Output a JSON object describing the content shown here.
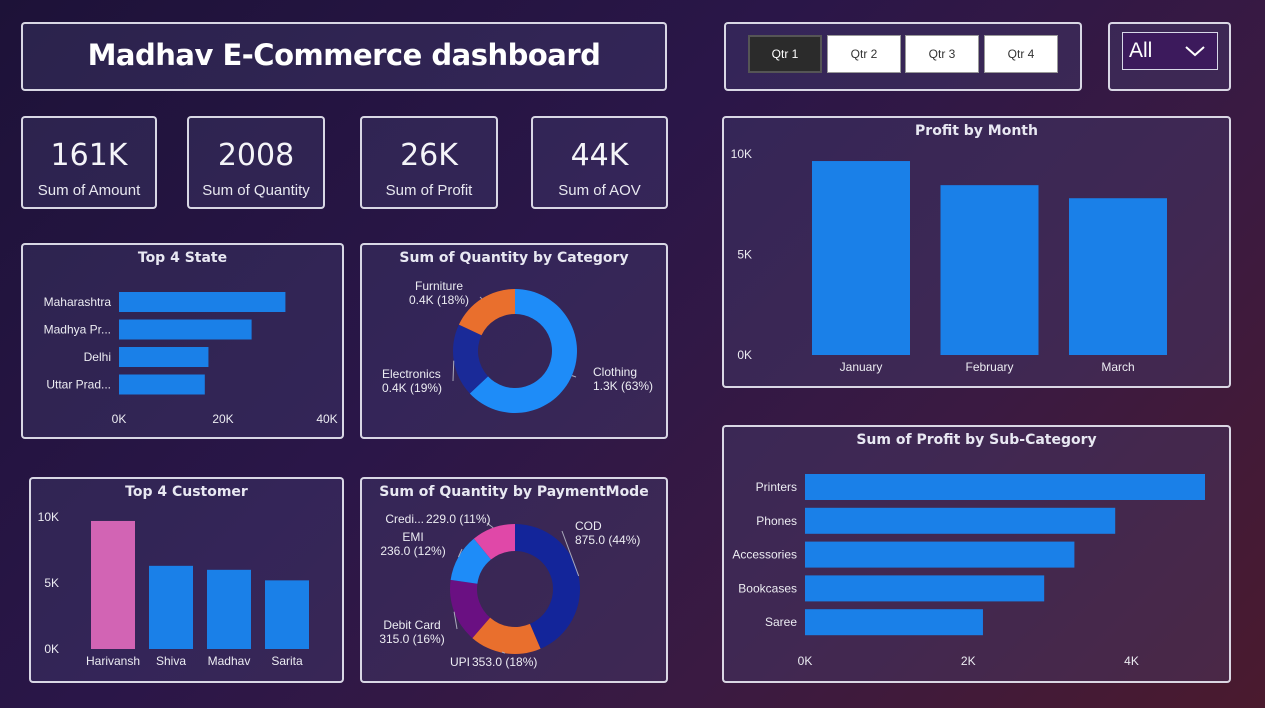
{
  "header": {
    "title": "Madhav E-Commerce dashboard"
  },
  "slicer": {
    "quarters": [
      {
        "label": "Qtr 1",
        "selected": true
      },
      {
        "label": "Qtr 2",
        "selected": false
      },
      {
        "label": "Qtr 3",
        "selected": false
      },
      {
        "label": "Qtr 4",
        "selected": false
      }
    ],
    "dropdown_value": "All"
  },
  "kpis": [
    {
      "value": "161K",
      "label": "Sum of Amount"
    },
    {
      "value": "2008",
      "label": "Sum of Quantity"
    },
    {
      "value": "26K",
      "label": "Sum of Profit"
    },
    {
      "value": "44K",
      "label": "Sum of AOV"
    }
  ],
  "colors": {
    "bar": "#1a80e8",
    "highlight": "#d264b4",
    "clothing": "#1e8cf8",
    "electronics": "#1a2a98",
    "furniture": "#e96f2d",
    "cod": "#13259a",
    "upi": "#e96f2d",
    "debit_card": "#6a1082",
    "emi": "#1e8cf8",
    "credit": "#e048a8"
  },
  "chart_data": [
    {
      "id": "top_state",
      "type": "bar",
      "orientation": "horizontal",
      "title": "Top 4 State",
      "categories": [
        "Maharashtra",
        "Madhya Pr...",
        "Delhi",
        "Uttar Prad..."
      ],
      "values": [
        32000,
        25500,
        17200,
        16500
      ],
      "xlim": [
        0,
        40000
      ],
      "xticks": [
        "0K",
        "20K",
        "40K"
      ],
      "xtick_values": [
        0,
        20000,
        40000
      ]
    },
    {
      "id": "qty_by_category",
      "type": "pie",
      "donut": true,
      "title": "Sum of Quantity by Category",
      "slices": [
        {
          "name": "Clothing",
          "value_label": "1.3K (63%)",
          "percent": 63,
          "color_key": "clothing"
        },
        {
          "name": "Electronics",
          "value_label": "0.4K (19%)",
          "percent": 19,
          "color_key": "electronics"
        },
        {
          "name": "Furniture",
          "value_label": "0.4K (18%)",
          "percent": 18,
          "color_key": "furniture"
        }
      ]
    },
    {
      "id": "top_customer",
      "type": "bar",
      "orientation": "vertical",
      "title": "Top 4 Customer",
      "categories": [
        "Harivansh",
        "Shiva",
        "Madhav",
        "Sarita"
      ],
      "values": [
        9700,
        6300,
        6000,
        5200
      ],
      "highlight_index": 0,
      "ylim": [
        0,
        10000
      ],
      "yticks": [
        "0K",
        "5K",
        "10K"
      ],
      "ytick_values": [
        0,
        5000,
        10000
      ]
    },
    {
      "id": "qty_by_payment",
      "type": "pie",
      "donut": true,
      "title": "Sum of Quantity by PaymentMode",
      "slices": [
        {
          "name": "COD",
          "value_label": "875.0 (44%)",
          "value": 875,
          "percent": 44,
          "color_key": "cod"
        },
        {
          "name": "UPI",
          "value_label": "353.0 (18%)",
          "value": 353,
          "percent": 18,
          "color_key": "upi"
        },
        {
          "name": "Debit Card",
          "value_label": "315.0 (16%)",
          "value": 315,
          "percent": 16,
          "color_key": "debit_card"
        },
        {
          "name": "EMI",
          "value_label": "236.0 (12%)",
          "value": 236,
          "percent": 12,
          "color_key": "emi"
        },
        {
          "name": "Credi...",
          "value_label": "229.0 (11%)",
          "value": 229,
          "percent": 11,
          "color_key": "credit"
        }
      ]
    },
    {
      "id": "profit_by_month",
      "type": "bar",
      "orientation": "vertical",
      "title": "Profit by Month",
      "categories": [
        "January",
        "February",
        "March"
      ],
      "values": [
        9650,
        8450,
        7800
      ],
      "ylim": [
        0,
        10000
      ],
      "yticks": [
        "0K",
        "5K",
        "10K"
      ],
      "ytick_values": [
        0,
        5000,
        10000
      ]
    },
    {
      "id": "profit_by_subcategory",
      "type": "bar",
      "orientation": "horizontal",
      "title": "Sum of Profit by Sub-Category",
      "categories": [
        "Printers",
        "Phones",
        "Accessories",
        "Bookcases",
        "Saree"
      ],
      "values": [
        4900,
        3800,
        3300,
        2930,
        2180
      ],
      "xlim": [
        0,
        4900
      ],
      "xticks": [
        "0K",
        "2K",
        "4K"
      ],
      "xtick_values": [
        0,
        2000,
        4000
      ]
    }
  ]
}
